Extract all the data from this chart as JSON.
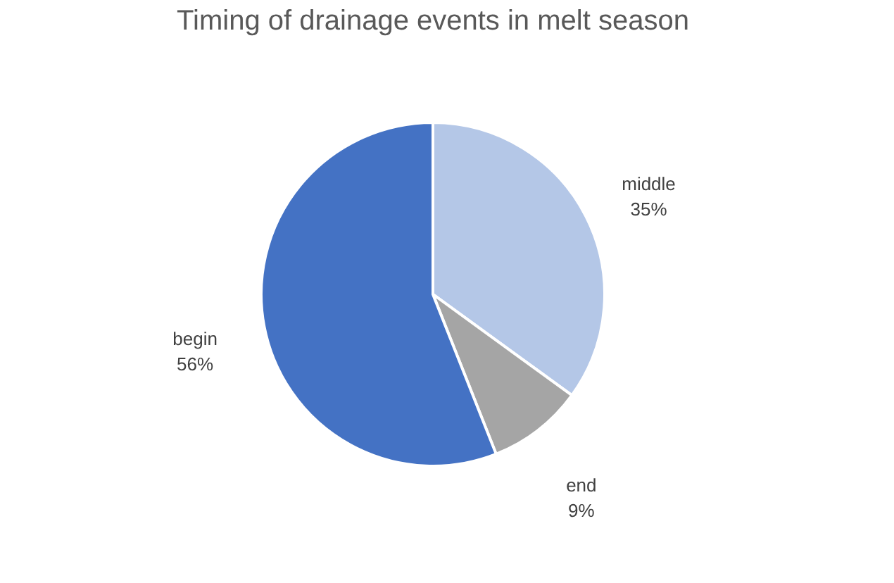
{
  "chart_data": {
    "type": "pie",
    "title": "Timing of drainage events in melt season",
    "categories": [
      "middle",
      "end",
      "begin"
    ],
    "values": [
      35,
      9,
      56
    ],
    "value_labels": [
      "35%",
      "9%",
      "56%"
    ],
    "colors": [
      "#b4c7e7",
      "#a5a5a5",
      "#4472c4"
    ],
    "legend": false
  }
}
